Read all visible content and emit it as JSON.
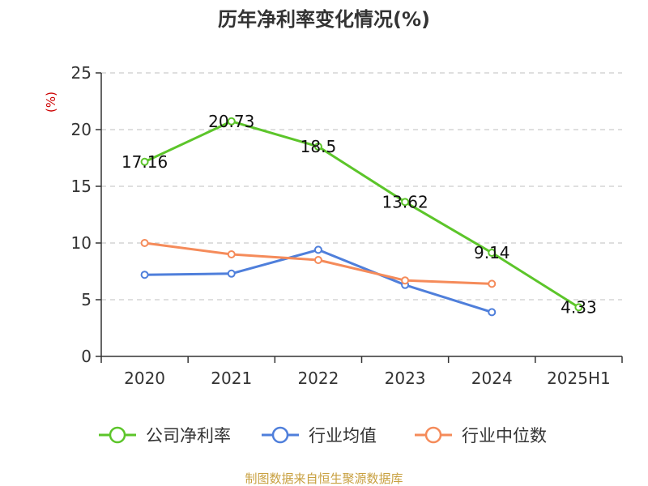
{
  "chart_data": {
    "type": "line",
    "title": "历年净利率变化情况(%)",
    "ylabel": "(%)",
    "xlabel": "",
    "categories": [
      "2020",
      "2021",
      "2022",
      "2023",
      "2024",
      "2025H1"
    ],
    "ylim": [
      0,
      25
    ],
    "yticks": [
      0,
      5,
      10,
      15,
      20,
      25
    ],
    "grid": true,
    "legend_position": "bottom",
    "series": [
      {
        "name": "公司净利率",
        "color": "#5cc52a",
        "values": [
          17.16,
          20.73,
          18.5,
          13.62,
          9.14,
          4.33
        ],
        "labels": [
          "17.16",
          "20.73",
          "18.5",
          "13.62",
          "9.14",
          "4.33"
        ]
      },
      {
        "name": "行业均值",
        "color": "#4f7fdb",
        "values": [
          7.2,
          7.3,
          9.4,
          6.3,
          3.9,
          null
        ]
      },
      {
        "name": "行业中位数",
        "color": "#f58b5a",
        "values": [
          10.0,
          9.0,
          8.5,
          6.7,
          6.4,
          null
        ]
      }
    ]
  },
  "source": {
    "text": "制图数据来自恒生聚源数据库",
    "color": "#c8a040"
  },
  "colors": {
    "axis": "#333333",
    "grid": "#cccccc",
    "ylabel": "#cc0000"
  }
}
